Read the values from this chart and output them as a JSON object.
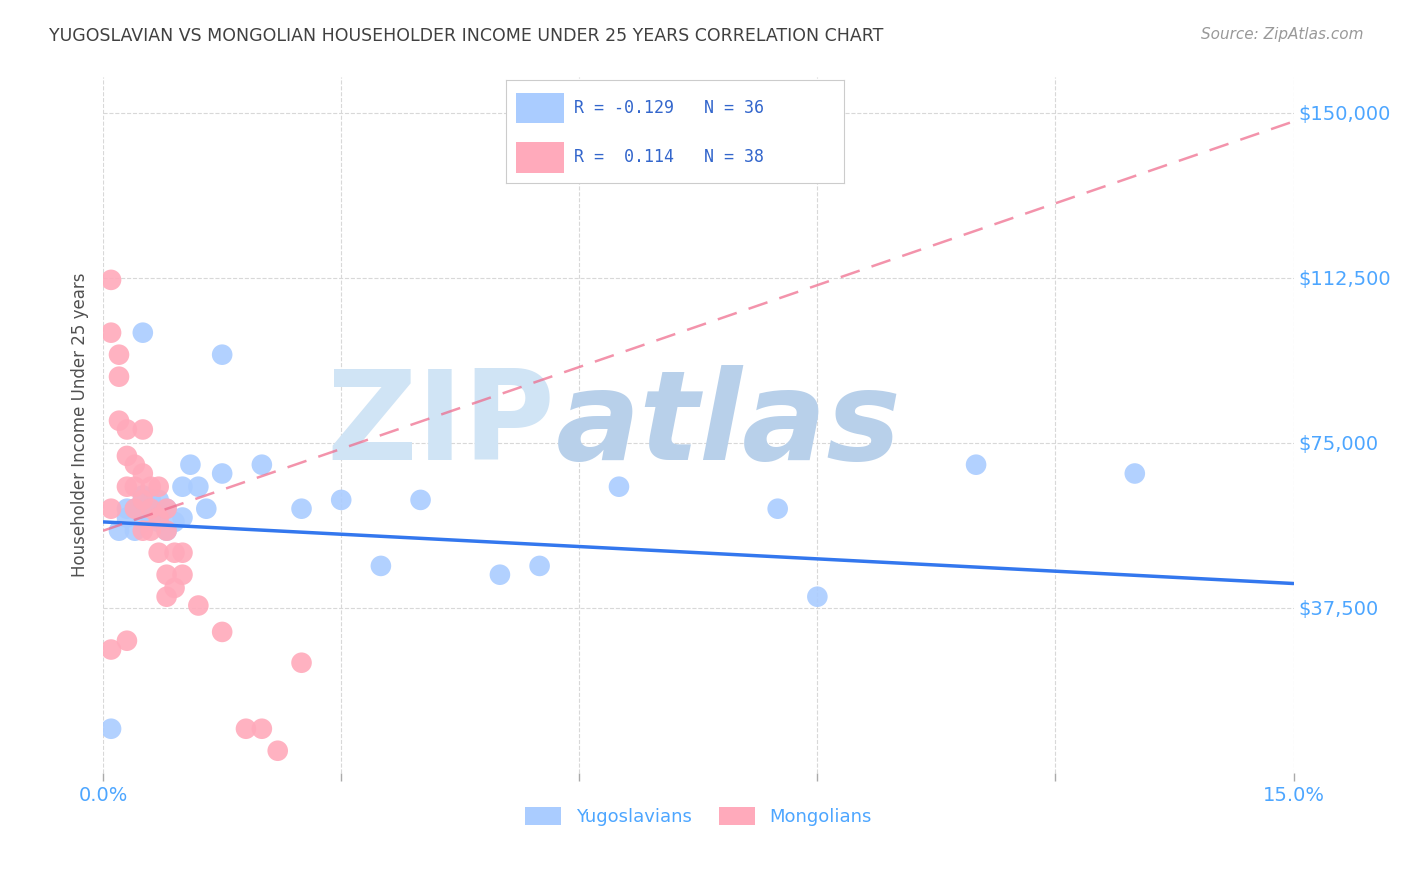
{
  "title": "YUGOSLAVIAN VS MONGOLIAN HOUSEHOLDER INCOME UNDER 25 YEARS CORRELATION CHART",
  "source": "Source: ZipAtlas.com",
  "ylabel": "Householder Income Under 25 years",
  "ytick_labels": [
    "$150,000",
    "$112,500",
    "$75,000",
    "$37,500"
  ],
  "ytick_values": [
    150000,
    112500,
    75000,
    37500
  ],
  "ylim": [
    0,
    158000
  ],
  "xlim": [
    0.0,
    0.15
  ],
  "background_color": "#ffffff",
  "grid_color": "#d8d8d8",
  "title_color": "#404040",
  "source_color": "#999999",
  "axis_label_color": "#4da6ff",
  "watermark_zip_color": "#c8dcf0",
  "watermark_atlas_color": "#a8c8e8",
  "yugoslavian_color": "#aaccff",
  "mongolian_color": "#ffaabb",
  "yug_line_color": "#3377ee",
  "mong_line_color": "#ee6688",
  "yug_scatter_x": [
    0.001,
    0.002,
    0.003,
    0.003,
    0.004,
    0.004,
    0.005,
    0.005,
    0.005,
    0.006,
    0.006,
    0.007,
    0.007,
    0.008,
    0.008,
    0.009,
    0.01,
    0.01,
    0.011,
    0.012,
    0.013,
    0.015,
    0.015,
    0.02,
    0.025,
    0.03,
    0.035,
    0.04,
    0.05,
    0.055,
    0.065,
    0.085,
    0.09,
    0.11,
    0.13,
    0.005
  ],
  "yug_scatter_y": [
    10000,
    55000,
    58000,
    60000,
    55000,
    60000,
    57000,
    60000,
    63000,
    58000,
    62000,
    57000,
    62000,
    55000,
    60000,
    57000,
    65000,
    58000,
    70000,
    65000,
    60000,
    95000,
    68000,
    70000,
    60000,
    62000,
    47000,
    62000,
    45000,
    47000,
    65000,
    60000,
    40000,
    70000,
    68000,
    100000
  ],
  "mong_scatter_x": [
    0.001,
    0.001,
    0.001,
    0.002,
    0.002,
    0.002,
    0.003,
    0.003,
    0.003,
    0.004,
    0.004,
    0.004,
    0.005,
    0.005,
    0.005,
    0.005,
    0.006,
    0.006,
    0.006,
    0.007,
    0.007,
    0.007,
    0.008,
    0.008,
    0.008,
    0.008,
    0.009,
    0.009,
    0.01,
    0.01,
    0.012,
    0.015,
    0.018,
    0.02,
    0.022,
    0.025,
    0.001,
    0.003
  ],
  "mong_scatter_y": [
    60000,
    112000,
    100000,
    95000,
    90000,
    80000,
    78000,
    72000,
    65000,
    70000,
    65000,
    60000,
    78000,
    68000,
    62000,
    55000,
    65000,
    60000,
    55000,
    65000,
    58000,
    50000,
    60000,
    55000,
    45000,
    40000,
    50000,
    42000,
    50000,
    45000,
    38000,
    32000,
    10000,
    10000,
    5000,
    25000,
    28000,
    30000
  ]
}
